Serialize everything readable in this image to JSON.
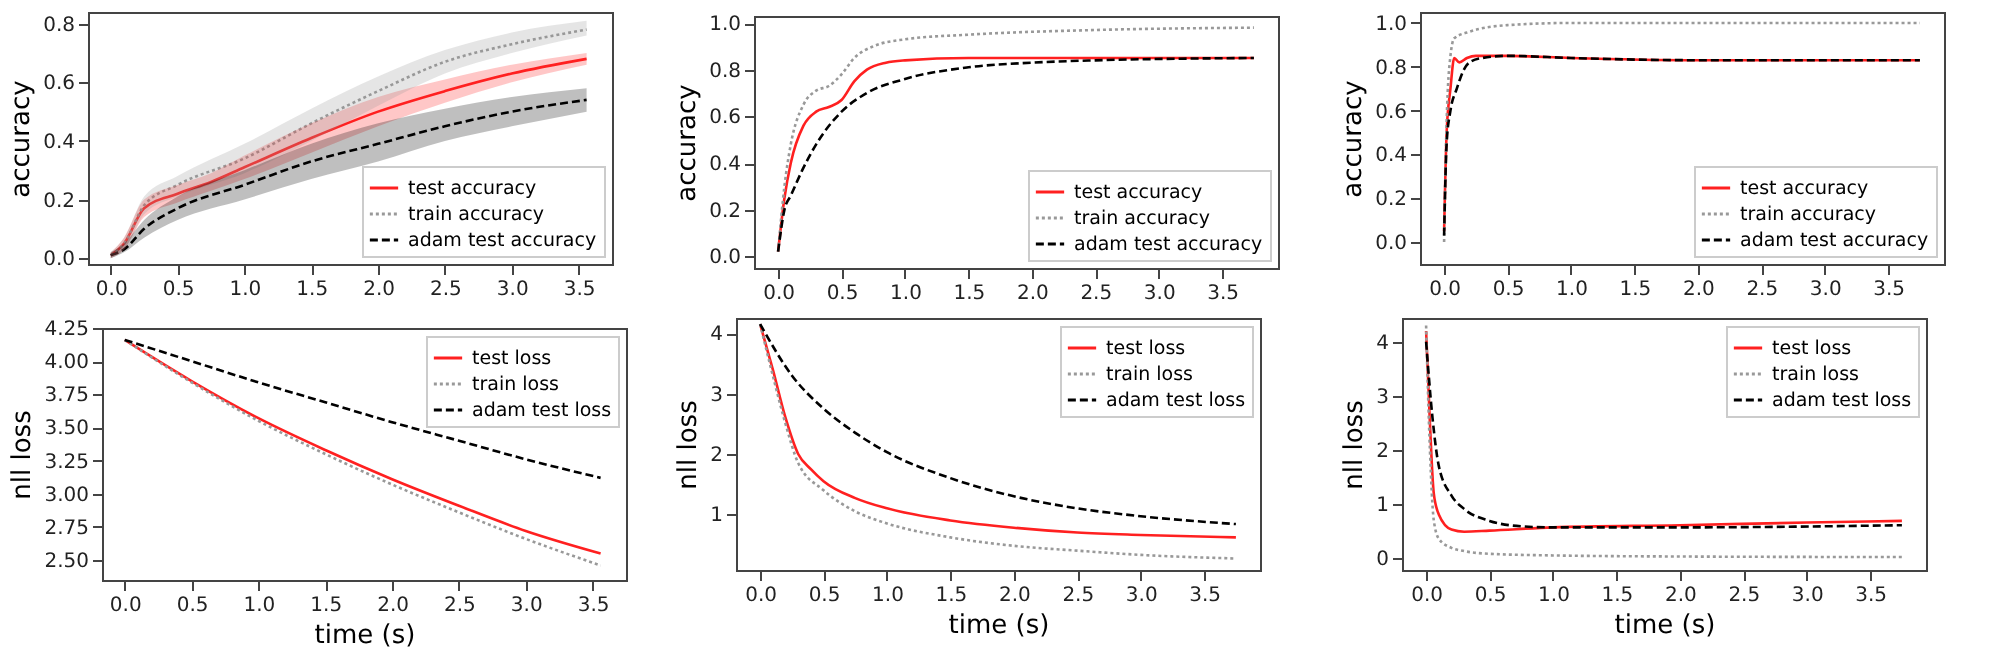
{
  "chart_data": [
    {
      "type": "line",
      "ylabel": "accuracy",
      "legend": "bottom right",
      "grid": false,
      "xlim": [
        -0.17,
        3.75
      ],
      "ylim": [
        -0.02,
        0.84
      ],
      "xticks": [
        {
          "value": 0,
          "label": "0.0"
        },
        {
          "value": 0.5,
          "label": "0.5"
        },
        {
          "value": 1,
          "label": "1.0"
        },
        {
          "value": 1.5,
          "label": "1.5"
        },
        {
          "value": 2,
          "label": "2.0"
        },
        {
          "value": 2.5,
          "label": "2.5"
        },
        {
          "value": 3,
          "label": "3.0"
        },
        {
          "value": 3.5,
          "label": "3.5"
        }
      ],
      "yticks": [
        {
          "value": 0,
          "label": "0.0"
        },
        {
          "value": 0.2,
          "label": "0.2"
        },
        {
          "value": 0.4,
          "label": "0.4"
        },
        {
          "value": 0.6,
          "label": "0.6"
        },
        {
          "value": 0.8,
          "label": "0.8"
        }
      ],
      "series": [
        {
          "name": "test accuracy",
          "color": "#ff2020",
          "line_style": "solid",
          "x": [
            0,
            0.1,
            0.25,
            0.5,
            0.75,
            1,
            1.5,
            2,
            2.5,
            3,
            3.56
          ],
          "values": [
            0.01,
            0.05,
            0.17,
            0.22,
            0.26,
            0.31,
            0.41,
            0.5,
            0.57,
            0.63,
            0.68
          ],
          "lower": [
            0,
            0.03,
            0.14,
            0.19,
            0.23,
            0.27,
            0.36,
            0.45,
            0.53,
            0.6,
            0.66
          ],
          "upper": [
            0.02,
            0.07,
            0.2,
            0.25,
            0.29,
            0.35,
            0.46,
            0.55,
            0.61,
            0.66,
            0.7
          ]
        },
        {
          "name": "train accuracy",
          "color": "#999999",
          "line_style": "dotted",
          "x": [
            0,
            0.1,
            0.25,
            0.5,
            1,
            1.5,
            2,
            2.5,
            3,
            3.56
          ],
          "values": [
            0.01,
            0.05,
            0.18,
            0.25,
            0.34,
            0.46,
            0.57,
            0.67,
            0.73,
            0.78
          ],
          "lower": [
            0,
            0.03,
            0.15,
            0.21,
            0.29,
            0.4,
            0.52,
            0.63,
            0.7,
            0.76
          ],
          "upper": [
            0.02,
            0.07,
            0.21,
            0.28,
            0.39,
            0.51,
            0.62,
            0.71,
            0.77,
            0.81
          ]
        },
        {
          "name": "adam test accuracy",
          "color": "#000000",
          "line_style": "dashed",
          "x": [
            0,
            0.1,
            0.25,
            0.5,
            1,
            1.5,
            2,
            2.5,
            3,
            3.56
          ],
          "values": [
            0.01,
            0.03,
            0.1,
            0.17,
            0.25,
            0.33,
            0.39,
            0.45,
            0.5,
            0.54
          ],
          "lower": [
            0,
            0.02,
            0.07,
            0.13,
            0.2,
            0.27,
            0.33,
            0.4,
            0.45,
            0.5
          ],
          "upper": [
            0.02,
            0.05,
            0.13,
            0.21,
            0.3,
            0.39,
            0.46,
            0.51,
            0.55,
            0.58
          ]
        }
      ]
    },
    {
      "type": "line",
      "ylabel": "accuracy",
      "legend": "bottom right",
      "grid": false,
      "xlim": [
        -0.19,
        3.94
      ],
      "ylim": [
        -0.05,
        1.03
      ],
      "xticks": [
        {
          "value": 0,
          "label": "0.0"
        },
        {
          "value": 0.5,
          "label": "0.5"
        },
        {
          "value": 1,
          "label": "1.0"
        },
        {
          "value": 1.5,
          "label": "1.5"
        },
        {
          "value": 2,
          "label": "2.0"
        },
        {
          "value": 2.5,
          "label": "2.5"
        },
        {
          "value": 3,
          "label": "3.0"
        },
        {
          "value": 3.5,
          "label": "3.5"
        }
      ],
      "yticks": [
        {
          "value": 0,
          "label": "0.0"
        },
        {
          "value": 0.2,
          "label": "0.2"
        },
        {
          "value": 0.4,
          "label": "0.4"
        },
        {
          "value": 0.6,
          "label": "0.6"
        },
        {
          "value": 0.8,
          "label": "0.8"
        },
        {
          "value": 1,
          "label": "1.0"
        }
      ],
      "series": [
        {
          "name": "test accuracy",
          "color": "#ff2020",
          "line_style": "solid",
          "x": [
            0,
            0.05,
            0.1,
            0.2,
            0.3,
            0.4,
            0.5,
            0.6,
            0.7,
            0.85,
            1,
            1.5,
            3.75
          ],
          "values": [
            0.02,
            0.25,
            0.4,
            0.56,
            0.62,
            0.64,
            0.67,
            0.75,
            0.8,
            0.83,
            0.84,
            0.85,
            0.85
          ]
        },
        {
          "name": "train accuracy",
          "color": "#999999",
          "line_style": "dotted",
          "x": [
            0,
            0.05,
            0.1,
            0.2,
            0.3,
            0.4,
            0.5,
            0.6,
            0.75,
            1,
            1.5,
            2.5,
            3.75
          ],
          "values": [
            0.02,
            0.3,
            0.48,
            0.65,
            0.71,
            0.73,
            0.78,
            0.85,
            0.9,
            0.93,
            0.95,
            0.97,
            0.98
          ]
        },
        {
          "name": "adam test accuracy",
          "color": "#000000",
          "line_style": "dashed",
          "x": [
            0,
            0.05,
            0.1,
            0.2,
            0.3,
            0.5,
            0.7,
            1,
            1.5,
            2,
            2.5,
            3.75
          ],
          "values": [
            0.02,
            0.2,
            0.26,
            0.38,
            0.48,
            0.62,
            0.7,
            0.76,
            0.81,
            0.83,
            0.84,
            0.85
          ]
        }
      ]
    },
    {
      "type": "line",
      "ylabel": "accuracy",
      "legend": "bottom right",
      "grid": false,
      "xlim": [
        -0.19,
        3.94
      ],
      "ylim": [
        -0.1,
        1.05
      ],
      "xticks": [
        {
          "value": 0,
          "label": "0.0"
        },
        {
          "value": 0.5,
          "label": "0.5"
        },
        {
          "value": 1,
          "label": "1.0"
        },
        {
          "value": 1.5,
          "label": "1.5"
        },
        {
          "value": 2,
          "label": "2.0"
        },
        {
          "value": 2.5,
          "label": "2.5"
        },
        {
          "value": 3,
          "label": "3.0"
        },
        {
          "value": 3.5,
          "label": "3.5"
        }
      ],
      "yticks": [
        {
          "value": 0,
          "label": "0.0"
        },
        {
          "value": 0.2,
          "label": "0.2"
        },
        {
          "value": 0.4,
          "label": "0.4"
        },
        {
          "value": 0.6,
          "label": "0.6"
        },
        {
          "value": 0.8,
          "label": "0.8"
        },
        {
          "value": 1,
          "label": "1.0"
        }
      ],
      "series": [
        {
          "name": "test accuracy",
          "color": "#ff2020",
          "line_style": "solid",
          "x": [
            0,
            0.02,
            0.05,
            0.08,
            0.12,
            0.18,
            0.25,
            0.5,
            1,
            2,
            3.75
          ],
          "values": [
            0.05,
            0.5,
            0.7,
            0.84,
            0.82,
            0.84,
            0.85,
            0.85,
            0.84,
            0.83,
            0.83
          ]
        },
        {
          "name": "train accuracy",
          "color": "#999999",
          "line_style": "dotted",
          "x": [
            0,
            0.02,
            0.05,
            0.08,
            0.2,
            0.5,
            1,
            3.75
          ],
          "values": [
            0,
            0.55,
            0.85,
            0.93,
            0.96,
            0.99,
            1,
            1
          ]
        },
        {
          "name": "adam test accuracy",
          "color": "#000000",
          "line_style": "dashed",
          "x": [
            0,
            0.02,
            0.05,
            0.1,
            0.15,
            0.2,
            0.3,
            0.5,
            1,
            2,
            3.75
          ],
          "values": [
            0.03,
            0.45,
            0.6,
            0.7,
            0.78,
            0.82,
            0.84,
            0.85,
            0.84,
            0.83,
            0.83
          ]
        }
      ]
    },
    {
      "type": "line",
      "xlabel": "time (s)",
      "ylabel": "nll loss",
      "legend": "top right",
      "grid": false,
      "xlim": [
        -0.17,
        3.75
      ],
      "ylim": [
        2.35,
        4.25
      ],
      "xticks": [
        {
          "value": 0,
          "label": "0.0"
        },
        {
          "value": 0.5,
          "label": "0.5"
        },
        {
          "value": 1,
          "label": "1.0"
        },
        {
          "value": 1.5,
          "label": "1.5"
        },
        {
          "value": 2,
          "label": "2.0"
        },
        {
          "value": 2.5,
          "label": "2.5"
        },
        {
          "value": 3,
          "label": "3.0"
        },
        {
          "value": 3.5,
          "label": "3.5"
        }
      ],
      "yticks": [
        {
          "value": 2.5,
          "label": "2.50"
        },
        2.75,
        {
          "value": 3,
          "label": "3.00"
        },
        3.25,
        {
          "value": 3.5,
          "label": "3.50"
        },
        3.75,
        {
          "value": 4,
          "label": "4.00"
        },
        4.25
      ],
      "series": [
        {
          "name": "test loss",
          "color": "#ff2020",
          "line_style": "solid",
          "x": [
            0,
            0.5,
            1,
            1.5,
            2,
            2.5,
            3,
            3.56
          ],
          "values": [
            4.16,
            3.85,
            3.57,
            3.33,
            3.11,
            2.91,
            2.72,
            2.55
          ]
        },
        {
          "name": "train loss",
          "color": "#999999",
          "line_style": "dotted",
          "x": [
            0,
            0.5,
            1,
            1.5,
            2,
            2.5,
            3,
            3.56
          ],
          "values": [
            4.16,
            3.84,
            3.55,
            3.3,
            3.07,
            2.86,
            2.66,
            2.46
          ]
        },
        {
          "name": "adam test loss",
          "color": "#000000",
          "line_style": "dashed",
          "x": [
            0,
            0.5,
            1,
            1.5,
            2,
            2.5,
            3,
            3.56
          ],
          "values": [
            4.16,
            4,
            3.84,
            3.69,
            3.54,
            3.4,
            3.26,
            3.12
          ]
        }
      ]
    },
    {
      "type": "line",
      "xlabel": "time (s)",
      "ylabel": "nll loss",
      "legend": "top right",
      "grid": false,
      "xlim": [
        -0.19,
        3.94
      ],
      "ylim": [
        0.08,
        4.25
      ],
      "xticks": [
        {
          "value": 0,
          "label": "0.0"
        },
        {
          "value": 0.5,
          "label": "0.5"
        },
        {
          "value": 1,
          "label": "1.0"
        },
        {
          "value": 1.5,
          "label": "1.5"
        },
        {
          "value": 2,
          "label": "2.0"
        },
        {
          "value": 2.5,
          "label": "2.5"
        },
        {
          "value": 3,
          "label": "3.0"
        },
        {
          "value": 3.5,
          "label": "3.5"
        }
      ],
      "yticks": [
        1,
        2,
        3,
        4
      ],
      "series": [
        {
          "name": "test loss",
          "color": "#ff2020",
          "line_style": "solid",
          "x": [
            0,
            0.1,
            0.2,
            0.3,
            0.4,
            0.5,
            0.75,
            1,
            1.5,
            2,
            2.5,
            3,
            3.75
          ],
          "values": [
            4.15,
            3.4,
            2.6,
            2,
            1.75,
            1.55,
            1.27,
            1.1,
            0.9,
            0.78,
            0.7,
            0.66,
            0.62
          ]
        },
        {
          "name": "train loss",
          "color": "#999999",
          "line_style": "dotted",
          "x": [
            0,
            0.1,
            0.2,
            0.3,
            0.5,
            0.75,
            1,
            1.5,
            2,
            2.5,
            3,
            3.75
          ],
          "values": [
            4.15,
            3.3,
            2.5,
            1.85,
            1.4,
            1.05,
            0.85,
            0.62,
            0.48,
            0.4,
            0.33,
            0.27
          ]
        },
        {
          "name": "adam test loss",
          "color": "#000000",
          "line_style": "dashed",
          "x": [
            0,
            0.25,
            0.5,
            0.75,
            1,
            1.5,
            2,
            2.5,
            3,
            3.75
          ],
          "values": [
            4.15,
            3.3,
            2.75,
            2.35,
            2.03,
            1.6,
            1.3,
            1.1,
            0.97,
            0.84
          ]
        }
      ]
    },
    {
      "type": "line",
      "xlabel": "time (s)",
      "ylabel": "nll loss",
      "legend": "top right",
      "grid": false,
      "xlim": [
        -0.19,
        3.94
      ],
      "ylim": [
        -0.23,
        4.44
      ],
      "xticks": [
        {
          "value": 0,
          "label": "0.0"
        },
        {
          "value": 0.5,
          "label": "0.5"
        },
        {
          "value": 1,
          "label": "1.0"
        },
        {
          "value": 1.5,
          "label": "1.5"
        },
        {
          "value": 2,
          "label": "2.0"
        },
        {
          "value": 2.5,
          "label": "2.5"
        },
        {
          "value": 3,
          "label": "3.0"
        },
        {
          "value": 3.5,
          "label": "3.5"
        }
      ],
      "yticks": [
        0,
        1,
        2,
        3,
        4
      ],
      "series": [
        {
          "name": "test loss",
          "color": "#ff2020",
          "line_style": "solid",
          "x": [
            0,
            0.03,
            0.06,
            0.1,
            0.2,
            0.3,
            0.5,
            1,
            2,
            3,
            3.75
          ],
          "values": [
            4.2,
            2.5,
            1.2,
            0.8,
            0.52,
            0.48,
            0.5,
            0.56,
            0.6,
            0.65,
            0.68
          ]
        },
        {
          "name": "train loss",
          "color": "#999999",
          "line_style": "dotted",
          "x": [
            0,
            0.03,
            0.06,
            0.1,
            0.2,
            0.3,
            0.5,
            1,
            2,
            3.75
          ],
          "values": [
            4.3,
            2,
            0.7,
            0.35,
            0.18,
            0.12,
            0.07,
            0.04,
            0.02,
            0.01
          ]
        },
        {
          "name": "adam test loss",
          "color": "#000000",
          "line_style": "dashed",
          "x": [
            0,
            0.05,
            0.1,
            0.2,
            0.3,
            0.5,
            0.75,
            1,
            2,
            3.75
          ],
          "values": [
            4,
            2.6,
            1.7,
            1.15,
            0.9,
            0.68,
            0.58,
            0.56,
            0.56,
            0.6
          ]
        }
      ]
    }
  ]
}
